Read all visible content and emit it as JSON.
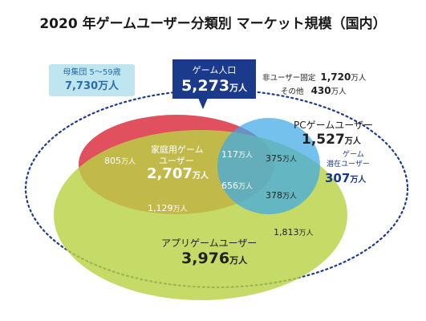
{
  "title": "2020 年ゲームユーザー分類別 マーケット規模（国内）",
  "population_box": {
    "label": "母集団 5～59歳",
    "value": "7,730万人"
  },
  "game_population": {
    "label": "ゲーム人口",
    "number": "5,273",
    "unit": "万人"
  },
  "side_stats": [
    {
      "label": "非ユーザー固定",
      "number": "1,720",
      "unit": "万人"
    },
    {
      "label": "その他",
      "number": "430",
      "unit": "万人"
    }
  ],
  "segments": {
    "pc": {
      "label": "PCゲームユーザー",
      "number": "1,527",
      "unit": "万人"
    },
    "latent": {
      "label_1": "ゲーム",
      "label_2": "潜在ユーザー",
      "number": "307",
      "unit": "万人"
    },
    "home": {
      "label_1": "家庭用ゲーム",
      "label_2": "ユーザー",
      "number": "2,707",
      "unit": "万人"
    },
    "app": {
      "label": "アプリゲームユーザー",
      "number": "3,976",
      "unit": "万人"
    }
  },
  "overlaps": [
    {
      "id": "home_only",
      "number": "805",
      "unit": "万人"
    },
    {
      "id": "home_pc",
      "number": "117",
      "unit": "万人"
    },
    {
      "id": "pc_only",
      "number": "375",
      "unit": "万人"
    },
    {
      "id": "all_three",
      "number": "656",
      "unit": "万人"
    },
    {
      "id": "pc_app",
      "number": "378",
      "unit": "万人"
    },
    {
      "id": "home_app",
      "number": "1,129",
      "unit": "万人"
    },
    {
      "id": "app_only",
      "number": "1,813",
      "unit": "万人"
    }
  ],
  "colors": {
    "home": "#e0505e",
    "pc": "#3fa9e6",
    "app": "#b9d246",
    "navy": "#1b3a8c",
    "light_blue_box": "#bfe5f1",
    "dotted_outline": "#1b3a8c"
  }
}
